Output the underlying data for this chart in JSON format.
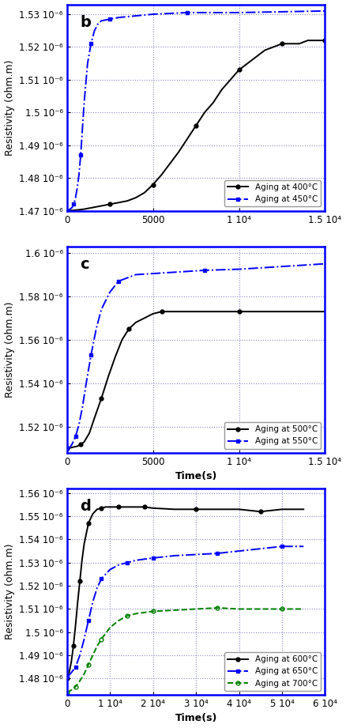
{
  "panels": [
    {
      "label": "b",
      "xlim": [
        0,
        15000
      ],
      "ylim": [
        1.47e-06,
        1.533e-06
      ],
      "yticks": [
        1.47e-06,
        1.48e-06,
        1.49e-06,
        1.5e-06,
        1.51e-06,
        1.52e-06,
        1.53e-06
      ],
      "ytick_labels": [
        "1.47 10⁻⁶",
        "1.48 10⁻⁶",
        "1.49 10⁻⁶",
        "1.5 10⁻⁶",
        "1.51 10⁻⁶",
        "1.52 10⁻⁶",
        "1.53 10⁻⁶"
      ],
      "xticks": [
        0,
        5000,
        10000,
        15000
      ],
      "xtick_labels": [
        "0",
        "5000",
        "1 10⁴",
        "1.5 10⁴"
      ],
      "xlabel": "",
      "ylabel": "Resistivity (ohm.m)",
      "series": [
        {
          "label": "Aging at 400°C",
          "color": "black",
          "linestyle": "-",
          "marker": "o",
          "markersize": 3.5,
          "markevery": 5,
          "x": [
            0,
            500,
            1000,
            1500,
            2000,
            2500,
            3000,
            3500,
            4000,
            4500,
            5000,
            5500,
            6000,
            6500,
            7000,
            7500,
            8000,
            8500,
            9000,
            9500,
            10000,
            10500,
            11000,
            11500,
            12000,
            12500,
            13000,
            13500,
            14000,
            14500,
            15000
          ],
          "y": [
            1.47e-06,
            1.4702e-06,
            1.4705e-06,
            1.471e-06,
            1.4715e-06,
            1.472e-06,
            1.4725e-06,
            1.473e-06,
            1.474e-06,
            1.4755e-06,
            1.478e-06,
            1.481e-06,
            1.4845e-06,
            1.488e-06,
            1.492e-06,
            1.496e-06,
            1.5e-06,
            1.503e-06,
            1.507e-06,
            1.51e-06,
            1.513e-06,
            1.515e-06,
            1.517e-06,
            1.519e-06,
            1.52e-06,
            1.521e-06,
            1.521e-06,
            1.521e-06,
            1.522e-06,
            1.522e-06,
            1.522e-06
          ]
        },
        {
          "label": "Aging at 450°C",
          "color": "blue",
          "linestyle": "-.",
          "marker": "s",
          "markersize": 3.5,
          "markevery": 4,
          "x": [
            0,
            100,
            200,
            300,
            400,
            500,
            600,
            700,
            800,
            900,
            1000,
            1200,
            1400,
            1600,
            1800,
            2000,
            2500,
            3000,
            4000,
            5000,
            7000,
            10000,
            15000
          ],
          "y": [
            1.47e-06,
            1.4702e-06,
            1.4706e-06,
            1.471e-06,
            1.472e-06,
            1.474e-06,
            1.477e-06,
            1.481e-06,
            1.487e-06,
            1.495e-06,
            1.503e-06,
            1.515e-06,
            1.521e-06,
            1.525e-06,
            1.527e-06,
            1.528e-06,
            1.5285e-06,
            1.529e-06,
            1.5295e-06,
            1.53e-06,
            1.5305e-06,
            1.5305e-06,
            1.531e-06
          ]
        }
      ],
      "legend_loc": "lower right"
    },
    {
      "label": "c",
      "xlim": [
        0,
        15000
      ],
      "ylim": [
        1.508e-06,
        1.603e-06
      ],
      "yticks": [
        1.52e-06,
        1.54e-06,
        1.56e-06,
        1.58e-06,
        1.6e-06
      ],
      "ytick_labels": [
        "1.52 10⁻⁶",
        "1.54 10⁻⁶",
        "1.56 10⁻⁶",
        "1.58 10⁻⁶",
        "1.6 10⁻⁶"
      ],
      "xticks": [
        0,
        5000,
        10000,
        15000
      ],
      "xtick_labels": [
        "0",
        "5000",
        "1 10⁴",
        "1.5 10⁴"
      ],
      "xlabel": "Time(s)",
      "ylabel": "Resistivity (ohm.m)",
      "series": [
        {
          "label": "Aging at 500°C",
          "color": "black",
          "linestyle": "-",
          "marker": "o",
          "markersize": 3.5,
          "markevery": 4,
          "x": [
            0,
            200,
            400,
            600,
            800,
            1000,
            1300,
            1600,
            2000,
            2400,
            2800,
            3200,
            3600,
            4000,
            4500,
            5000,
            5500,
            6000,
            7000,
            8000,
            10000,
            12000,
            15000
          ],
          "y": [
            1.51e-06,
            1.5103e-06,
            1.5107e-06,
            1.511e-06,
            1.5118e-06,
            1.513e-06,
            1.517e-06,
            1.524e-06,
            1.533e-06,
            1.543e-06,
            1.552e-06,
            1.56e-06,
            1.565e-06,
            1.568e-06,
            1.57e-06,
            1.572e-06,
            1.573e-06,
            1.573e-06,
            1.573e-06,
            1.573e-06,
            1.573e-06,
            1.573e-06,
            1.573e-06
          ]
        },
        {
          "label": "Aging at 550°C",
          "color": "blue",
          "linestyle": "-.",
          "marker": "s",
          "markersize": 3.5,
          "markevery": 4,
          "x": [
            0,
            100,
            200,
            300,
            500,
            700,
            900,
            1100,
            1400,
            1700,
            2000,
            2500,
            3000,
            4000,
            5000,
            6000,
            8000,
            10000,
            12000,
            15000
          ],
          "y": [
            1.51e-06,
            1.5103e-06,
            1.5108e-06,
            1.512e-06,
            1.5155e-06,
            1.521e-06,
            1.529e-06,
            1.539e-06,
            1.553e-06,
            1.565e-06,
            1.574e-06,
            1.582e-06,
            1.587e-06,
            1.59e-06,
            1.5905e-06,
            1.591e-06,
            1.592e-06,
            1.5925e-06,
            1.5935e-06,
            1.595e-06
          ]
        }
      ],
      "legend_loc": "lower right"
    },
    {
      "label": "d",
      "xlim": [
        0,
        60000
      ],
      "ylim": [
        1.473e-06,
        1.562e-06
      ],
      "yticks": [
        1.48e-06,
        1.49e-06,
        1.5e-06,
        1.51e-06,
        1.52e-06,
        1.53e-06,
        1.54e-06,
        1.55e-06,
        1.56e-06
      ],
      "ytick_labels": [
        "1.48 10⁻⁶",
        "1.49 10⁻⁶",
        "1.5 10⁻⁶",
        "1.51 10⁻⁶",
        "1.52 10⁻⁶",
        "1.53 10⁻⁶",
        "1.54 10⁻⁶",
        "1.55 10⁻⁶",
        "1.56 10⁻⁶"
      ],
      "xticks": [
        0,
        10000,
        20000,
        30000,
        40000,
        50000,
        60000
      ],
      "xtick_labels": [
        "0",
        "1 10⁴",
        "2 10⁴",
        "3 10⁴",
        "4 10⁴",
        "5 10⁴",
        "6 10⁴"
      ],
      "xlabel": "Time(s)",
      "ylabel": "Resistivity (ohm.m)",
      "series": [
        {
          "label": "Aging at 600°C",
          "color": "black",
          "linestyle": "-",
          "marker": "o",
          "markersize": 3.5,
          "markevery": 3,
          "x": [
            0,
            500,
            1000,
            1500,
            2000,
            2500,
            3000,
            3500,
            4000,
            5000,
            6000,
            7000,
            8000,
            9000,
            10000,
            12000,
            14000,
            16000,
            18000,
            20000,
            25000,
            30000,
            35000,
            40000,
            45000,
            50000,
            55000
          ],
          "y": [
            1.48e-06,
            1.4825e-06,
            1.487e-06,
            1.494e-06,
            1.503e-06,
            1.513e-06,
            1.522e-06,
            1.531e-06,
            1.538e-06,
            1.547e-06,
            1.551e-06,
            1.553e-06,
            1.5535e-06,
            1.554e-06,
            1.554e-06,
            1.554e-06,
            1.554e-06,
            1.554e-06,
            1.554e-06,
            1.5535e-06,
            1.553e-06,
            1.553e-06,
            1.553e-06,
            1.553e-06,
            1.552e-06,
            1.553e-06,
            1.553e-06
          ]
        },
        {
          "label": "Aging at 650°C",
          "color": "blue",
          "linestyle": "-.",
          "marker": "s",
          "markersize": 3.5,
          "markevery": 3,
          "x": [
            0,
            500,
            1000,
            2000,
            3000,
            4000,
            5000,
            6000,
            7000,
            8000,
            10000,
            12000,
            14000,
            16000,
            18000,
            20000,
            25000,
            30000,
            35000,
            40000,
            45000,
            50000,
            55000
          ],
          "y": [
            1.481e-06,
            1.4815e-06,
            1.4825e-06,
            1.485e-06,
            1.49e-06,
            1.497e-06,
            1.505e-06,
            1.513e-06,
            1.519e-06,
            1.523e-06,
            1.527e-06,
            1.529e-06,
            1.53e-06,
            1.531e-06,
            1.5315e-06,
            1.532e-06,
            1.533e-06,
            1.5335e-06,
            1.534e-06,
            1.535e-06,
            1.536e-06,
            1.537e-06,
            1.537e-06
          ]
        },
        {
          "label": "Aging at 700°C",
          "color": "green",
          "linestyle": "--",
          "marker": "o",
          "markersize": 3.5,
          "markevery": 3,
          "x": [
            0,
            500,
            1000,
            2000,
            3000,
            4000,
            5000,
            6000,
            7000,
            8000,
            10000,
            12000,
            14000,
            16000,
            18000,
            20000,
            25000,
            30000,
            35000,
            40000,
            45000,
            50000,
            55000
          ],
          "y": [
            1.474e-06,
            1.4745e-06,
            1.475e-06,
            1.4765e-06,
            1.479e-06,
            1.482e-06,
            1.486e-06,
            1.49e-06,
            1.494e-06,
            1.497e-06,
            1.502e-06,
            1.505e-06,
            1.507e-06,
            1.508e-06,
            1.5085e-06,
            1.509e-06,
            1.5095e-06,
            1.51e-06,
            1.5105e-06,
            1.51e-06,
            1.51e-06,
            1.51e-06,
            1.51e-06
          ]
        }
      ],
      "legend_loc": "lower right"
    }
  ],
  "border_color": "blue",
  "grid_color": "#8888cc",
  "background_color": "white",
  "label_fontsize": 9,
  "tick_fontsize": 8.5,
  "legend_fontsize": 7.5,
  "panel_label_fontsize": 14
}
